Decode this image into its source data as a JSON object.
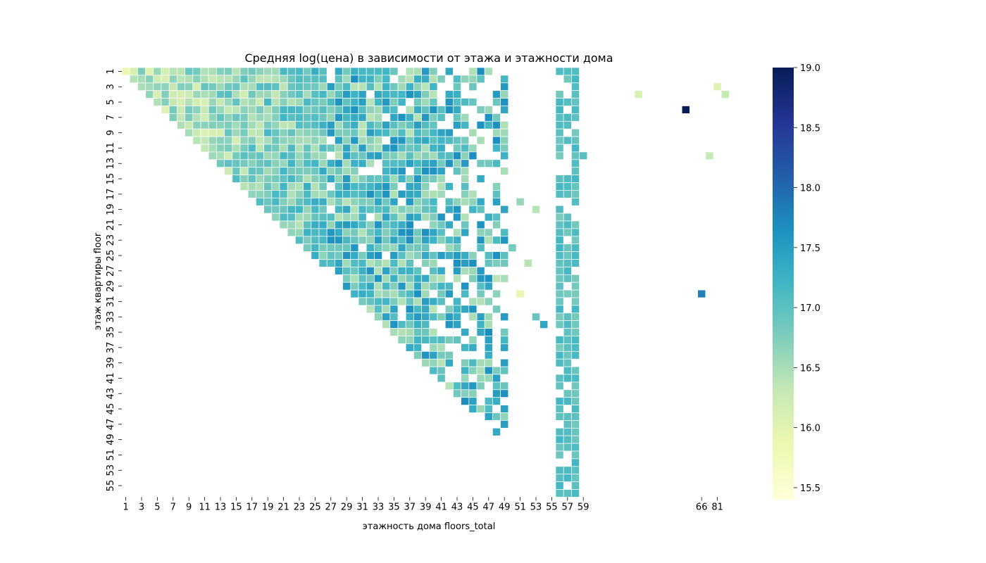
{
  "chart_data": {
    "type": "heatmap",
    "title": "Средняя log(цена) в зависимости от этажа и этажности дома",
    "xlabel": "этажность дома floors_total",
    "ylabel": "этаж квартиры floor",
    "x_categories": [
      "1",
      "2",
      "3",
      "4",
      "5",
      "6",
      "7",
      "8",
      "9",
      "10",
      "11",
      "12",
      "13",
      "14",
      "15",
      "16",
      "17",
      "18",
      "19",
      "20",
      "21",
      "22",
      "23",
      "24",
      "25",
      "26",
      "27",
      "28",
      "29",
      "30",
      "31",
      "32",
      "33",
      "34",
      "35",
      "36",
      "37",
      "38",
      "39",
      "40",
      "41",
      "42",
      "43",
      "44",
      "45",
      "46",
      "47",
      "48",
      "49",
      "50",
      "51",
      "52",
      "53",
      "54",
      "55",
      "56",
      "57",
      "58",
      "59",
      "60",
      "61",
      "62",
      "63",
      "64",
      "65",
      "66",
      "67",
      "68",
      "69",
      "70",
      "71",
      "72",
      "73",
      "74",
      "75",
      "76",
      "77",
      "78",
      "79",
      "80",
      "81",
      "82",
      "83"
    ],
    "x_tick_labels": [
      "1",
      "3",
      "5",
      "7",
      "9",
      "11",
      "13",
      "15",
      "17",
      "19",
      "21",
      "23",
      "25",
      "27",
      "29",
      "31",
      "33",
      "35",
      "37",
      "39",
      "41",
      "43",
      "45",
      "47",
      "49",
      "51",
      "53",
      "55",
      "57",
      "59",
      "66",
      "81"
    ],
    "y_categories": [
      "1",
      "2",
      "3",
      "4",
      "5",
      "6",
      "7",
      "8",
      "9",
      "10",
      "11",
      "12",
      "13",
      "14",
      "15",
      "16",
      "17",
      "18",
      "19",
      "20",
      "21",
      "22",
      "23",
      "24",
      "25",
      "26",
      "27",
      "28",
      "29",
      "30",
      "31",
      "32",
      "33",
      "34",
      "35",
      "36",
      "37",
      "38",
      "39",
      "40",
      "41",
      "42",
      "43",
      "44",
      "45",
      "46",
      "47",
      "48",
      "49",
      "50",
      "51",
      "52",
      "53",
      "54",
      "55",
      "56"
    ],
    "y_tick_labels": [
      "1",
      "3",
      "5",
      "7",
      "9",
      "11",
      "13",
      "15",
      "17",
      "19",
      "21",
      "23",
      "25",
      "27",
      "29",
      "31",
      "33",
      "35",
      "37",
      "39",
      "41",
      "43",
      "45",
      "47",
      "49",
      "51",
      "53",
      "55"
    ],
    "colorbar": {
      "min": 15.4,
      "max": 19.0,
      "ticks": [
        "15.5",
        "16.0",
        "16.5",
        "17.0",
        "17.5",
        "18.0",
        "18.5",
        "19.0"
      ],
      "colormap": "YlGnBu"
    },
    "special_cells": [
      {
        "x": "1",
        "y": "1",
        "value": 15.8
      },
      {
        "x": "60",
        "y": "6",
        "value": 19.0
      },
      {
        "x": "55",
        "y": "4",
        "value": 16.1
      },
      {
        "x": "81",
        "y": "3",
        "value": 16.0
      },
      {
        "x": "82",
        "y": "4",
        "value": 16.3
      },
      {
        "x": "69",
        "y": "12",
        "value": 16.3
      },
      {
        "x": "66",
        "y": "30",
        "value": 17.8
      },
      {
        "x": "59",
        "y": "12",
        "value": 17.0
      },
      {
        "x": "51",
        "y": "18",
        "value": 16.6
      },
      {
        "x": "53",
        "y": "19",
        "value": 16.4
      },
      {
        "x": "51",
        "y": "30",
        "value": 15.9
      },
      {
        "x": "52",
        "y": "26",
        "value": 16.4
      },
      {
        "x": "50",
        "y": "24",
        "value": 16.8
      },
      {
        "x": "53",
        "y": "33",
        "value": 16.9
      },
      {
        "x": "54",
        "y": "34",
        "value": 17.4
      }
    ],
    "notes_on_values": "Cells generally range 16-18.5; low floors in low-rise buildings ~16.2-16.5, high-rise buildings ~17-18."
  }
}
